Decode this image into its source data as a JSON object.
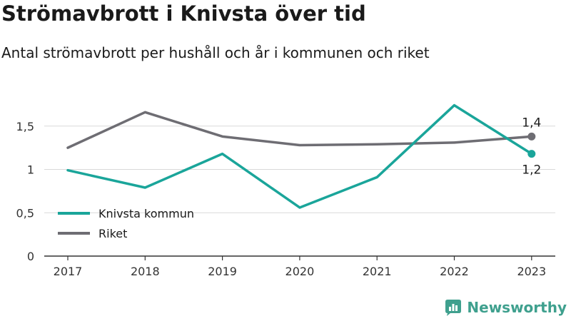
{
  "title": "Strömavbrott i Knivsta över tid",
  "subtitle": "Antal strömavbrott per hushåll och år i kommunen och riket",
  "brand": {
    "name": "Newsworthy",
    "color": "#3fa08e"
  },
  "chart_data": {
    "type": "line",
    "title": "Strömavbrott i Knivsta över tid",
    "subtitle": "Antal strömavbrott per hushåll och år i kommunen och riket",
    "xlabel": "",
    "ylabel": "",
    "categories": [
      "2017",
      "2018",
      "2019",
      "2020",
      "2021",
      "2022",
      "2023"
    ],
    "ylim": [
      0,
      1.8
    ],
    "yticks": [
      {
        "value": 0,
        "label": "0"
      },
      {
        "value": 0.5,
        "label": "0,5"
      },
      {
        "value": 1,
        "label": "1"
      },
      {
        "value": 1.5,
        "label": "1,5"
      }
    ],
    "grid": true,
    "legend_position": "lower-left",
    "series": [
      {
        "name": "Knivsta kommun",
        "color": "#1aa59a",
        "values": [
          0.99,
          0.79,
          1.18,
          0.56,
          0.91,
          1.74,
          1.18
        ],
        "end_label": "1,2"
      },
      {
        "name": "Riket",
        "color": "#6e6d73",
        "values": [
          1.25,
          1.66,
          1.38,
          1.28,
          1.29,
          1.31,
          1.38
        ],
        "end_label": "1,4"
      }
    ]
  }
}
